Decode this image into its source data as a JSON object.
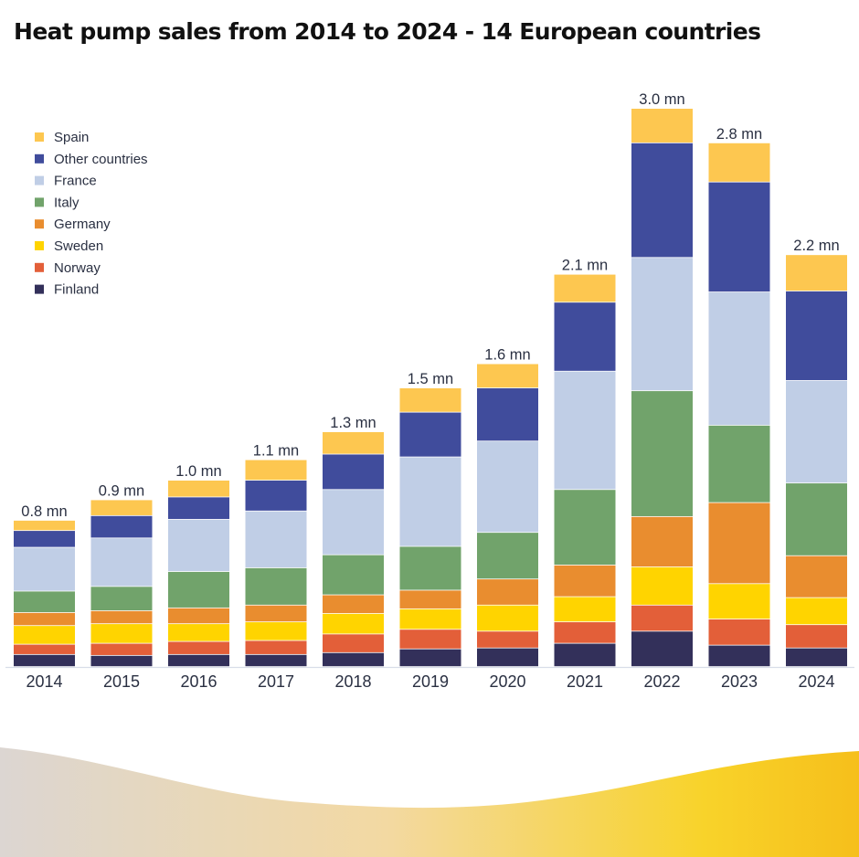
{
  "title": "Heat pump sales from 2014 to 2024 - 14 European countries",
  "colors": {
    "Spain": "#fdc750",
    "Other countries": "#404c9c",
    "France": "#c0cee6",
    "Italy": "#71a36b",
    "Germany": "#e98d2f",
    "Sweden": "#ffd400",
    "Norway": "#e35f39",
    "Finland": "#33305a",
    "label_text": "#2a3042",
    "axis_line": "#d8dde8",
    "wave_start": "#dcd6d2",
    "wave_mid": "#f3d9a2",
    "wave_end": "#f6bf1b"
  },
  "chart_data": {
    "type": "bar",
    "stacked": true,
    "title": "Heat pump sales from 2014 to 2024 - 14 European countries",
    "xlabel": "",
    "ylabel": "",
    "unit": "thousand units",
    "ylim": [
      0,
      3000
    ],
    "grid": false,
    "legend_position": "top-left",
    "categories": [
      "2014",
      "2015",
      "2016",
      "2017",
      "2018",
      "2019",
      "2020",
      "2021",
      "2022",
      "2023",
      "2024"
    ],
    "totals_labels": [
      "0.8 mn",
      "0.9 mn",
      "1.0 mn",
      "1.1 mn",
      "1.3 mn",
      "1.5 mn",
      "1.6 mn",
      "2.1 mn",
      "3.0 mn",
      "2.8 mn",
      "2.2 mn"
    ],
    "series": [
      {
        "name": "Finland",
        "values": [
          65,
          60,
          65,
          65,
          75,
          95,
          100,
          125,
          190,
          115,
          100
        ]
      },
      {
        "name": "Norway",
        "values": [
          55,
          65,
          70,
          75,
          100,
          105,
          90,
          115,
          140,
          140,
          125
        ]
      },
      {
        "name": "Sweden",
        "values": [
          100,
          105,
          95,
          100,
          110,
          110,
          140,
          135,
          205,
          190,
          145
        ]
      },
      {
        "name": "Germany",
        "values": [
          70,
          70,
          85,
          90,
          100,
          100,
          140,
          170,
          270,
          435,
          225
        ]
      },
      {
        "name": "Italy",
        "values": [
          115,
          130,
          195,
          200,
          215,
          235,
          250,
          405,
          675,
          415,
          390
        ]
      },
      {
        "name": "France",
        "values": [
          235,
          260,
          280,
          305,
          350,
          480,
          490,
          635,
          715,
          715,
          550
        ]
      },
      {
        "name": "Other countries",
        "values": [
          90,
          120,
          120,
          165,
          190,
          240,
          285,
          370,
          615,
          590,
          480
        ]
      },
      {
        "name": "Spain",
        "values": [
          55,
          85,
          90,
          110,
          120,
          130,
          130,
          150,
          185,
          210,
          195
        ]
      }
    ],
    "legend": [
      "Spain",
      "Other countries",
      "France",
      "Italy",
      "Germany",
      "Sweden",
      "Norway",
      "Finland"
    ]
  }
}
